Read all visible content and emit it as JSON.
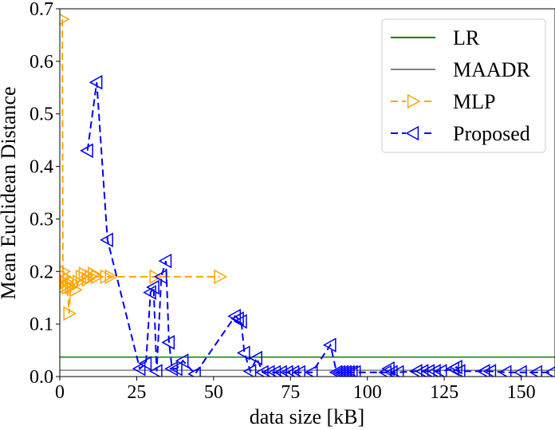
{
  "chart_data": {
    "type": "line",
    "title": "",
    "xlabel": "data size [kB]",
    "ylabel": "Mean Euclidean Distance",
    "xlim": [
      0,
      161
    ],
    "ylim": [
      0,
      0.7
    ],
    "xticks": [
      0,
      25,
      50,
      75,
      100,
      125,
      150
    ],
    "yticks": [
      0.0,
      0.1,
      0.2,
      0.3,
      0.4,
      0.5,
      0.6,
      0.7
    ],
    "grid": false,
    "legend_position": "top-right",
    "series": [
      {
        "name": "LR",
        "kind": "hline",
        "y": 0.037,
        "color": "#008000",
        "dash": "solid",
        "marker": "none"
      },
      {
        "name": "MAADR",
        "kind": "hline",
        "y": 0.012,
        "color": "#808080",
        "dash": "solid",
        "marker": "none"
      },
      {
        "name": "MLP",
        "kind": "line",
        "color": "#ffa500",
        "dash": "dashed",
        "marker": "triangle-right",
        "x": [
          0.8,
          1.0,
          1.2,
          1.5,
          2.0,
          2.5,
          3.0,
          3.5,
          4.0,
          5.0,
          6.0,
          7.0,
          8.0,
          9.0,
          10.0,
          11.0,
          12.0,
          15.0,
          16.5,
          31.0,
          52.0
        ],
        "y": [
          0.68,
          0.17,
          0.2,
          0.19,
          0.18,
          0.17,
          0.12,
          0.17,
          0.18,
          0.165,
          0.18,
          0.19,
          0.195,
          0.185,
          0.19,
          0.195,
          0.19,
          0.19,
          0.19,
          0.19,
          0.19
        ]
      },
      {
        "name": "Proposed",
        "kind": "line",
        "color": "#0000ff",
        "dash": "dashed",
        "marker": "triangle-left",
        "x": [
          9.0,
          12.0,
          15.5,
          26.0,
          28.0,
          29.5,
          30.5,
          31.5,
          33.0,
          34.5,
          35.5,
          36.5,
          38.0,
          40.0,
          44.0,
          57.0,
          58.0,
          59.0,
          60.0,
          62.0,
          64.0,
          66.0,
          68.0,
          70.0,
          72.0,
          74.0,
          76.0,
          78.0,
          82.0,
          88.0,
          90.0,
          91.0,
          92.0,
          93.0,
          94.0,
          95.0,
          96.0,
          106.0,
          107.0,
          108.0,
          110.0,
          116.0,
          118.0,
          120.0,
          122.0,
          124.0,
          128.0,
          129.0,
          130.0,
          138.0,
          140.0,
          145.0,
          150.0,
          155.0,
          160.0
        ],
        "y": [
          0.43,
          0.56,
          0.26,
          0.015,
          0.025,
          0.16,
          0.17,
          0.01,
          0.19,
          0.22,
          0.065,
          0.015,
          0.015,
          0.03,
          0.005,
          0.115,
          0.11,
          0.105,
          0.045,
          0.01,
          0.035,
          0.008,
          0.008,
          0.008,
          0.008,
          0.008,
          0.008,
          0.008,
          0.008,
          0.06,
          0.008,
          0.008,
          0.008,
          0.008,
          0.008,
          0.008,
          0.008,
          0.008,
          0.015,
          0.008,
          0.008,
          0.01,
          0.01,
          0.01,
          0.01,
          0.01,
          0.015,
          0.018,
          0.01,
          0.01,
          0.01,
          0.008,
          0.008,
          0.008,
          0.008
        ]
      }
    ]
  }
}
